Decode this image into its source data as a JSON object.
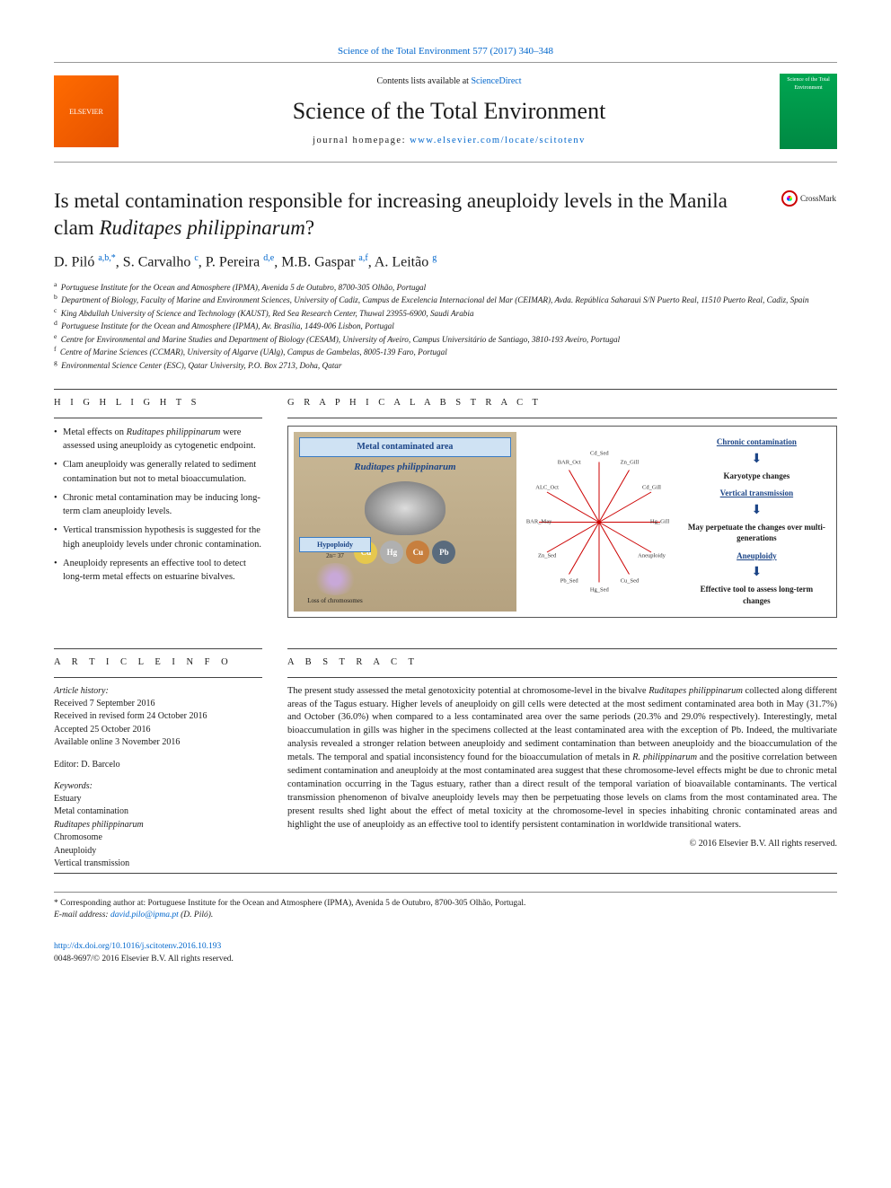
{
  "top_link": "Science of the Total Environment 577 (2017) 340–348",
  "header": {
    "contents_prefix": "Contents lists available at ",
    "contents_link": "ScienceDirect",
    "journal_title": "Science of the Total Environment",
    "homepage_prefix": "journal homepage: ",
    "homepage_url": "www.elsevier.com/locate/scitotenv",
    "cover_text": "Science of the Total Environment"
  },
  "title_plain": "Is metal contamination responsible for increasing aneuploidy levels in the Manila clam ",
  "title_species": "Ruditapes philippinarum",
  "title_q": "?",
  "crossmark_label": "CrossMark",
  "authors_html": "D. Piló <sup>a,b,*</sup>, S. Carvalho <sup>c</sup>, P. Pereira <sup>d,e</sup>, M.B. Gaspar <sup>a,f</sup>, A. Leitão <sup>g</sup>",
  "affiliations": [
    {
      "sup": "a",
      "text": "Portuguese Institute for the Ocean and Atmosphere (IPMA), Avenida 5 de Outubro, 8700-305 Olhão, Portugal"
    },
    {
      "sup": "b",
      "text": "Department of Biology, Faculty of Marine and Environment Sciences, University of Cadiz, Campus de Excelencia Internacional del Mar (CEIMAR), Avda. República Saharaui S/N Puerto Real, 11510 Puerto Real, Cadiz, Spain"
    },
    {
      "sup": "c",
      "text": "King Abdullah University of Science and Technology (KAUST), Red Sea Research Center, Thuwal 23955-6900, Saudi Arabia"
    },
    {
      "sup": "d",
      "text": "Portuguese Institute for the Ocean and Atmosphere (IPMA), Av. Brasília, 1449-006 Lisbon, Portugal"
    },
    {
      "sup": "e",
      "text": "Centre for Environmental and Marine Studies and Department of Biology (CESAM), University of Aveiro, Campus Universitário de Santiago, 3810-193 Aveiro, Portugal"
    },
    {
      "sup": "f",
      "text": "Centre of Marine Sciences (CCMAR), University of Algarve (UAlg), Campus de Gambelas, 8005-139 Faro, Portugal"
    },
    {
      "sup": "g",
      "text": "Environmental Science Center (ESC), Qatar University, P.O. Box 2713, Doha, Qatar"
    }
  ],
  "labels": {
    "highlights": "H I G H L I G H T S",
    "graphical_abstract": "G R A P H I C A L   A B S T R A C T",
    "article_info": "A R T I C L E   I N F O",
    "abstract": "A B S T R A C T"
  },
  "highlights": [
    "Metal effects on <em>Ruditapes philippinarum</em> were assessed using aneuploidy as cytogenetic endpoint.",
    "Clam aneuploidy was generally related to sediment contamination but not to metal bioaccumulation.",
    "Chronic metal contamination may be inducing long-term clam aneuploidy levels.",
    "Vertical transmission hypothesis is suggested for the high aneuploidy levels under chronic contamination.",
    "Aneuploidy represents an effective tool to detect long-term metal effects on estuarine bivalves."
  ],
  "graphical": {
    "left_title": "Metal contaminated area",
    "species": "Ruditapes philippinarum",
    "metals": [
      {
        "code": "Cd",
        "cls": "m-cd"
      },
      {
        "code": "Hg",
        "cls": "m-hg"
      },
      {
        "code": "Cu",
        "cls": "m-cu"
      },
      {
        "code": "Pb",
        "cls": "m-pb"
      }
    ],
    "center_labels": [
      "Zn_Gill",
      "Cd_Gill",
      "Hg_Gill",
      "Aneuploidy",
      "Cu_Sed",
      "Hg_Sed",
      "Pb_Sed",
      "Zn_Sed",
      "BAR_May",
      "ALC_Oct",
      "BAR_Oct",
      "Cd_Sed"
    ],
    "right_items": [
      {
        "text": "Chronic contamination",
        "cls": "ga-blue"
      },
      {
        "text": "Karyotype changes",
        "cls": ""
      },
      {
        "text": "Vertical transmission",
        "cls": "ga-blue"
      },
      {
        "text": "May perpetuate the changes over multi-generations",
        "cls": ""
      },
      {
        "text": "Aneuploidy",
        "cls": "ga-blue"
      },
      {
        "text": "Effective tool to assess long-term changes",
        "cls": ""
      }
    ],
    "hypo_title": "Hypoploidy",
    "hypo_sub": "2n= 37",
    "hypo_loss": "Loss of chromosomes"
  },
  "article_info": {
    "history_label": "Article history:",
    "history": [
      "Received 7 September 2016",
      "Received in revised form 24 October 2016",
      "Accepted 25 October 2016",
      "Available online 3 November 2016"
    ],
    "editor": "Editor: D. Barcelo",
    "keywords_label": "Keywords:",
    "keywords": [
      "Estuary",
      "Metal contamination",
      "<em>Ruditapes philippinarum</em>",
      "Chromosome",
      "Aneuploidy",
      "Vertical transmission"
    ]
  },
  "abstract": "The present study assessed the metal genotoxicity potential at chromosome-level in the bivalve <em>Ruditapes philippinarum</em> collected along different areas of the Tagus estuary. Higher levels of aneuploidy on gill cells were detected at the most sediment contaminated area both in May (31.7%) and October (36.0%) when compared to a less contaminated area over the same periods (20.3% and 29.0% respectively). Interestingly, metal bioaccumulation in gills was higher in the specimens collected at the least contaminated area with the exception of Pb. Indeed, the multivariate analysis revealed a stronger relation between aneuploidy and sediment contamination than between aneuploidy and the bioaccumulation of the metals. The temporal and spatial inconsistency found for the bioaccumulation of metals in <em>R. philippinarum</em> and the positive correlation between sediment contamination and aneuploidy at the most contaminated area suggest that these chromosome-level effects might be due to chronic metal contamination occurring in the Tagus estuary, rather than a direct result of the temporal variation of bioavailable contaminants. The vertical transmission phenomenon of bivalve aneuploidy levels may then be perpetuating those levels on clams from the most contaminated area. The present results shed light about the effect of metal toxicity at the chromosome-level in species inhabiting chronic contaminated areas and highlight the use of aneuploidy as an effective tool to identify persistent contamination in worldwide transitional waters.",
  "copyright": "© 2016 Elsevier B.V. All rights reserved.",
  "corresponding": {
    "star": "*",
    "label": "Corresponding author at: Portuguese Institute for the Ocean and Atmosphere (IPMA), Avenida 5 de Outubro, 8700-305 Olhão, Portugal.",
    "email_label": "E-mail address: ",
    "email": "david.pilo@ipma.pt",
    "email_suffix": " (D. Piló)."
  },
  "doi": {
    "url": "http://dx.doi.org/10.1016/j.scitotenv.2016.10.193",
    "issn_line": "0048-9697/© 2016 Elsevier B.V. All rights reserved."
  }
}
